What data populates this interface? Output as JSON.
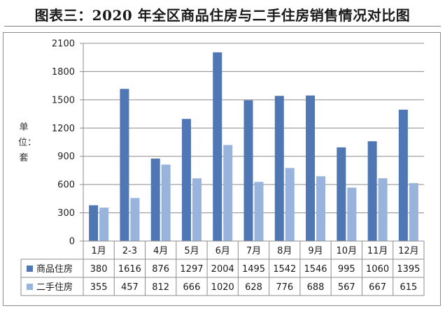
{
  "title": "图表三：2020 年全区商品住房与二手住房销售情况对比图",
  "colors": {
    "series1": "#4f77b3",
    "series2": "#98b3dc",
    "grid": "#8c8c8c",
    "axis": "#8c8c8c"
  },
  "chart_data": {
    "type": "bar",
    "categories": [
      "1月",
      "2-3",
      "4月",
      "5月",
      "6月",
      "7月",
      "8月",
      "9月",
      "10月",
      "11月",
      "12月"
    ],
    "series": [
      {
        "name": "商品住房",
        "values": [
          380,
          1616,
          876,
          1297,
          2004,
          1495,
          1542,
          1546,
          995,
          1060,
          1395
        ]
      },
      {
        "name": "二手住房",
        "values": [
          355,
          457,
          812,
          666,
          1020,
          628,
          776,
          688,
          567,
          667,
          615
        ]
      }
    ],
    "ylabel": "单位：套",
    "ylim": [
      0,
      2100
    ],
    "yticks": [
      0,
      300,
      600,
      900,
      1200,
      1500,
      1800,
      2100
    ],
    "grid": true,
    "legend": "data-table"
  }
}
